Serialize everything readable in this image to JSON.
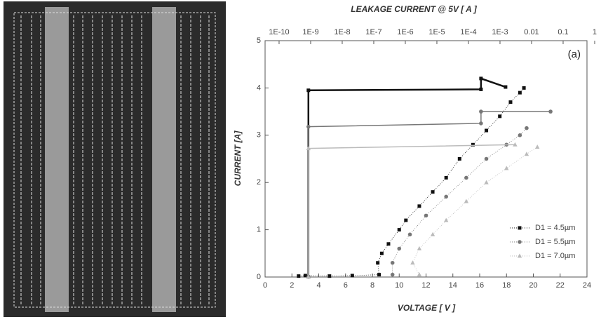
{
  "chart_data": {
    "type": "scatter",
    "x_label": "VOLTAGE [ V ]",
    "y_label": "CURRENT [A]",
    "x2_label": "LEAKAGE CURRENT @ 5V [ A ]",
    "annotation": "(a)",
    "xlim": [
      0,
      24
    ],
    "xticks": [
      0,
      2,
      4,
      6,
      8,
      10,
      12,
      14,
      16,
      18,
      20,
      22,
      24
    ],
    "ylim": [
      0,
      5
    ],
    "yticks": [
      0,
      1,
      2,
      3,
      4,
      5
    ],
    "x2lim": [
      3.6e-11,
      0.57
    ],
    "x2scale": "log",
    "x2ticks": [
      {
        "value": 1e-10,
        "label": "1E-10"
      },
      {
        "value": 1e-09,
        "label": "1E-9"
      },
      {
        "value": 1e-08,
        "label": "1E-8"
      },
      {
        "value": 1e-07,
        "label": "1E-7"
      },
      {
        "value": 1e-06,
        "label": "1E-6"
      },
      {
        "value": 1e-05,
        "label": "1E-5"
      },
      {
        "value": 0.0001,
        "label": "1E-4"
      },
      {
        "value": 0.001,
        "label": "1E-3"
      },
      0.01,
      0.1,
      1
    ],
    "legend": "lower right",
    "series": [
      {
        "name": "D1 = 4.5µm",
        "color": "#111111",
        "marker": "square",
        "x": [
          2.5,
          3.0,
          4.8,
          6.5,
          8.5,
          8.4,
          8.7,
          9.2,
          10.0,
          10.5,
          11.5,
          12.5,
          13.5,
          14.5,
          15.5,
          16.5,
          17.5,
          18.3,
          19.0,
          19.3
        ],
        "values": [
          0.02,
          0.03,
          0.02,
          0.03,
          0.05,
          0.3,
          0.5,
          0.7,
          1.0,
          1.2,
          1.5,
          1.8,
          2.1,
          2.5,
          2.8,
          3.1,
          3.4,
          3.7,
          3.9,
          4.0
        ],
        "leakage_x": [
          8.5e-10,
          8.5e-10,
          0.00025,
          0.00025,
          0.0015
        ],
        "leakage_values": [
          0,
          3.95,
          3.97,
          4.2,
          4.02
        ]
      },
      {
        "name": "D1 = 5.5µm",
        "color": "#777777",
        "marker": "circle",
        "x": [
          9.5,
          9.5,
          10.0,
          10.8,
          12.0,
          13.5,
          15.0,
          16.5,
          18.0,
          19.0,
          19.5
        ],
        "values": [
          0.05,
          0.3,
          0.6,
          0.9,
          1.3,
          1.7,
          2.1,
          2.5,
          2.8,
          3.0,
          3.15
        ],
        "leakage_x": [
          8.5e-10,
          8.5e-10,
          0.00025,
          0.00025,
          0.04
        ],
        "leakage_values": [
          0,
          3.18,
          3.25,
          3.5,
          3.5
        ]
      },
      {
        "name": "D1 = 7.0µm",
        "color": "#bbbbbb",
        "marker": "triangle",
        "x": [
          11.5,
          11.0,
          11.5,
          12.5,
          13.5,
          15.0,
          16.5,
          18.0,
          19.5,
          20.3
        ],
        "values": [
          0.05,
          0.3,
          0.6,
          0.9,
          1.2,
          1.6,
          2.0,
          2.3,
          2.6,
          2.75
        ],
        "leakage_x": [
          8.5e-10,
          8.5e-10,
          0.003
        ],
        "leakage_values": [
          0,
          2.72,
          2.8
        ]
      }
    ]
  }
}
